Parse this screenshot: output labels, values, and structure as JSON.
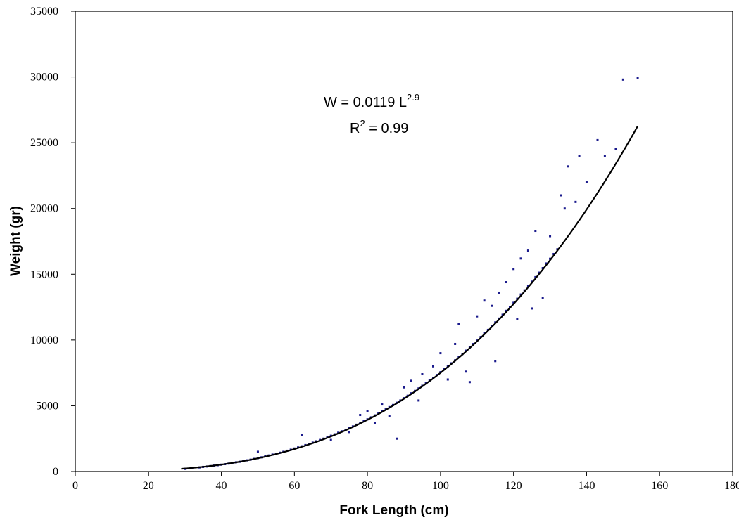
{
  "chart_data": {
    "type": "scatter",
    "title": "",
    "xlabel": "Fork Length (cm)",
    "ylabel": "Weight (gr)",
    "xlim": [
      0,
      180
    ],
    "ylim": [
      0,
      35000
    ],
    "x_ticks": [
      "0",
      "20",
      "40",
      "60",
      "80",
      "100",
      "120",
      "140",
      "160",
      "180"
    ],
    "y_ticks": [
      "0",
      "5000",
      "10000",
      "15000",
      "20000",
      "25000",
      "30000",
      "35000"
    ],
    "grid": false,
    "legend": "none",
    "annotation": {
      "equation_prefix": "W = 0.0119 L",
      "equation_exponent": "2.9",
      "r2_prefix": "R",
      "r2_exponent": "2",
      "r2_suffix": " = 0.99"
    },
    "trendline": {
      "type": "power",
      "a": 0.0119,
      "b": 2.9,
      "x_range": [
        29,
        154
      ]
    },
    "series": [
      {
        "values": [
          [
            30,
            200
          ],
          [
            32,
            260
          ],
          [
            34,
            310
          ],
          [
            35,
            350
          ],
          [
            36,
            380
          ],
          [
            37,
            410
          ],
          [
            38,
            450
          ],
          [
            39,
            480
          ],
          [
            40,
            520
          ],
          [
            41,
            560
          ],
          [
            42,
            600
          ],
          [
            43,
            650
          ],
          [
            44,
            700
          ],
          [
            45,
            740
          ],
          [
            46,
            800
          ],
          [
            47,
            850
          ],
          [
            48,
            900
          ],
          [
            49,
            960
          ],
          [
            50,
            1020
          ],
          [
            50,
            1500
          ],
          [
            51,
            1080
          ],
          [
            52,
            1150
          ],
          [
            53,
            1220
          ],
          [
            54,
            1290
          ],
          [
            55,
            1350
          ],
          [
            56,
            1430
          ],
          [
            57,
            1500
          ],
          [
            58,
            1580
          ],
          [
            59,
            1660
          ],
          [
            60,
            1750
          ],
          [
            61,
            1830
          ],
          [
            62,
            1920
          ],
          [
            62,
            2800
          ],
          [
            63,
            2010
          ],
          [
            64,
            2100
          ],
          [
            65,
            2200
          ],
          [
            66,
            2300
          ],
          [
            67,
            2400
          ],
          [
            68,
            2500
          ],
          [
            69,
            2600
          ],
          [
            70,
            2720
          ],
          [
            70,
            2400
          ],
          [
            71,
            2830
          ],
          [
            72,
            2950
          ],
          [
            73,
            3060
          ],
          [
            74,
            3180
          ],
          [
            75,
            3300
          ],
          [
            75,
            3000
          ],
          [
            76,
            3430
          ],
          [
            77,
            3560
          ],
          [
            78,
            3700
          ],
          [
            78,
            4300
          ],
          [
            79,
            3830
          ],
          [
            80,
            3970
          ],
          [
            80,
            4600
          ],
          [
            81,
            4120
          ],
          [
            82,
            4270
          ],
          [
            82,
            3700
          ],
          [
            83,
            4420
          ],
          [
            84,
            4580
          ],
          [
            84,
            5100
          ],
          [
            85,
            4730
          ],
          [
            86,
            4900
          ],
          [
            86,
            4200
          ],
          [
            87,
            5060
          ],
          [
            88,
            5230
          ],
          [
            88,
            2500
          ],
          [
            89,
            5400
          ],
          [
            90,
            5580
          ],
          [
            90,
            6400
          ],
          [
            91,
            5760
          ],
          [
            92,
            5950
          ],
          [
            92,
            6900
          ],
          [
            93,
            6130
          ],
          [
            94,
            6320
          ],
          [
            94,
            5400
          ],
          [
            95,
            6520
          ],
          [
            95,
            7400
          ],
          [
            96,
            6720
          ],
          [
            97,
            6930
          ],
          [
            98,
            7130
          ],
          [
            98,
            8000
          ],
          [
            99,
            7340
          ],
          [
            100,
            7560
          ],
          [
            100,
            9000
          ],
          [
            101,
            7780
          ],
          [
            102,
            8000
          ],
          [
            102,
            7000
          ],
          [
            103,
            8230
          ],
          [
            104,
            8460
          ],
          [
            104,
            9700
          ],
          [
            105,
            8700
          ],
          [
            105,
            11200
          ],
          [
            106,
            8940
          ],
          [
            107,
            9190
          ],
          [
            107,
            7600
          ],
          [
            108,
            9440
          ],
          [
            108,
            6800
          ],
          [
            109,
            9700
          ],
          [
            110,
            9960
          ],
          [
            110,
            11800
          ],
          [
            111,
            10230
          ],
          [
            112,
            10500
          ],
          [
            112,
            13000
          ],
          [
            113,
            10770
          ],
          [
            114,
            11050
          ],
          [
            114,
            12600
          ],
          [
            115,
            11340
          ],
          [
            115,
            8400
          ],
          [
            116,
            11630
          ],
          [
            116,
            13600
          ],
          [
            117,
            11920
          ],
          [
            118,
            12220
          ],
          [
            118,
            14400
          ],
          [
            119,
            12520
          ],
          [
            120,
            12830
          ],
          [
            120,
            15400
          ],
          [
            121,
            13140
          ],
          [
            121,
            11600
          ],
          [
            122,
            13460
          ],
          [
            122,
            16200
          ],
          [
            123,
            13780
          ],
          [
            124,
            14110
          ],
          [
            124,
            16800
          ],
          [
            125,
            14440
          ],
          [
            125,
            12400
          ],
          [
            126,
            14780
          ],
          [
            126,
            18300
          ],
          [
            127,
            15120
          ],
          [
            128,
            15470
          ],
          [
            128,
            13200
          ],
          [
            129,
            15820
          ],
          [
            130,
            16180
          ],
          [
            130,
            17900
          ],
          [
            131,
            16540
          ],
          [
            132,
            16900
          ],
          [
            133,
            21000
          ],
          [
            134,
            20000
          ],
          [
            135,
            23200
          ],
          [
            137,
            20500
          ],
          [
            138,
            24000
          ],
          [
            140,
            22000
          ],
          [
            143,
            25200
          ],
          [
            145,
            24000
          ],
          [
            148,
            24500
          ],
          [
            150,
            29800
          ],
          [
            154,
            29900
          ]
        ]
      }
    ]
  }
}
